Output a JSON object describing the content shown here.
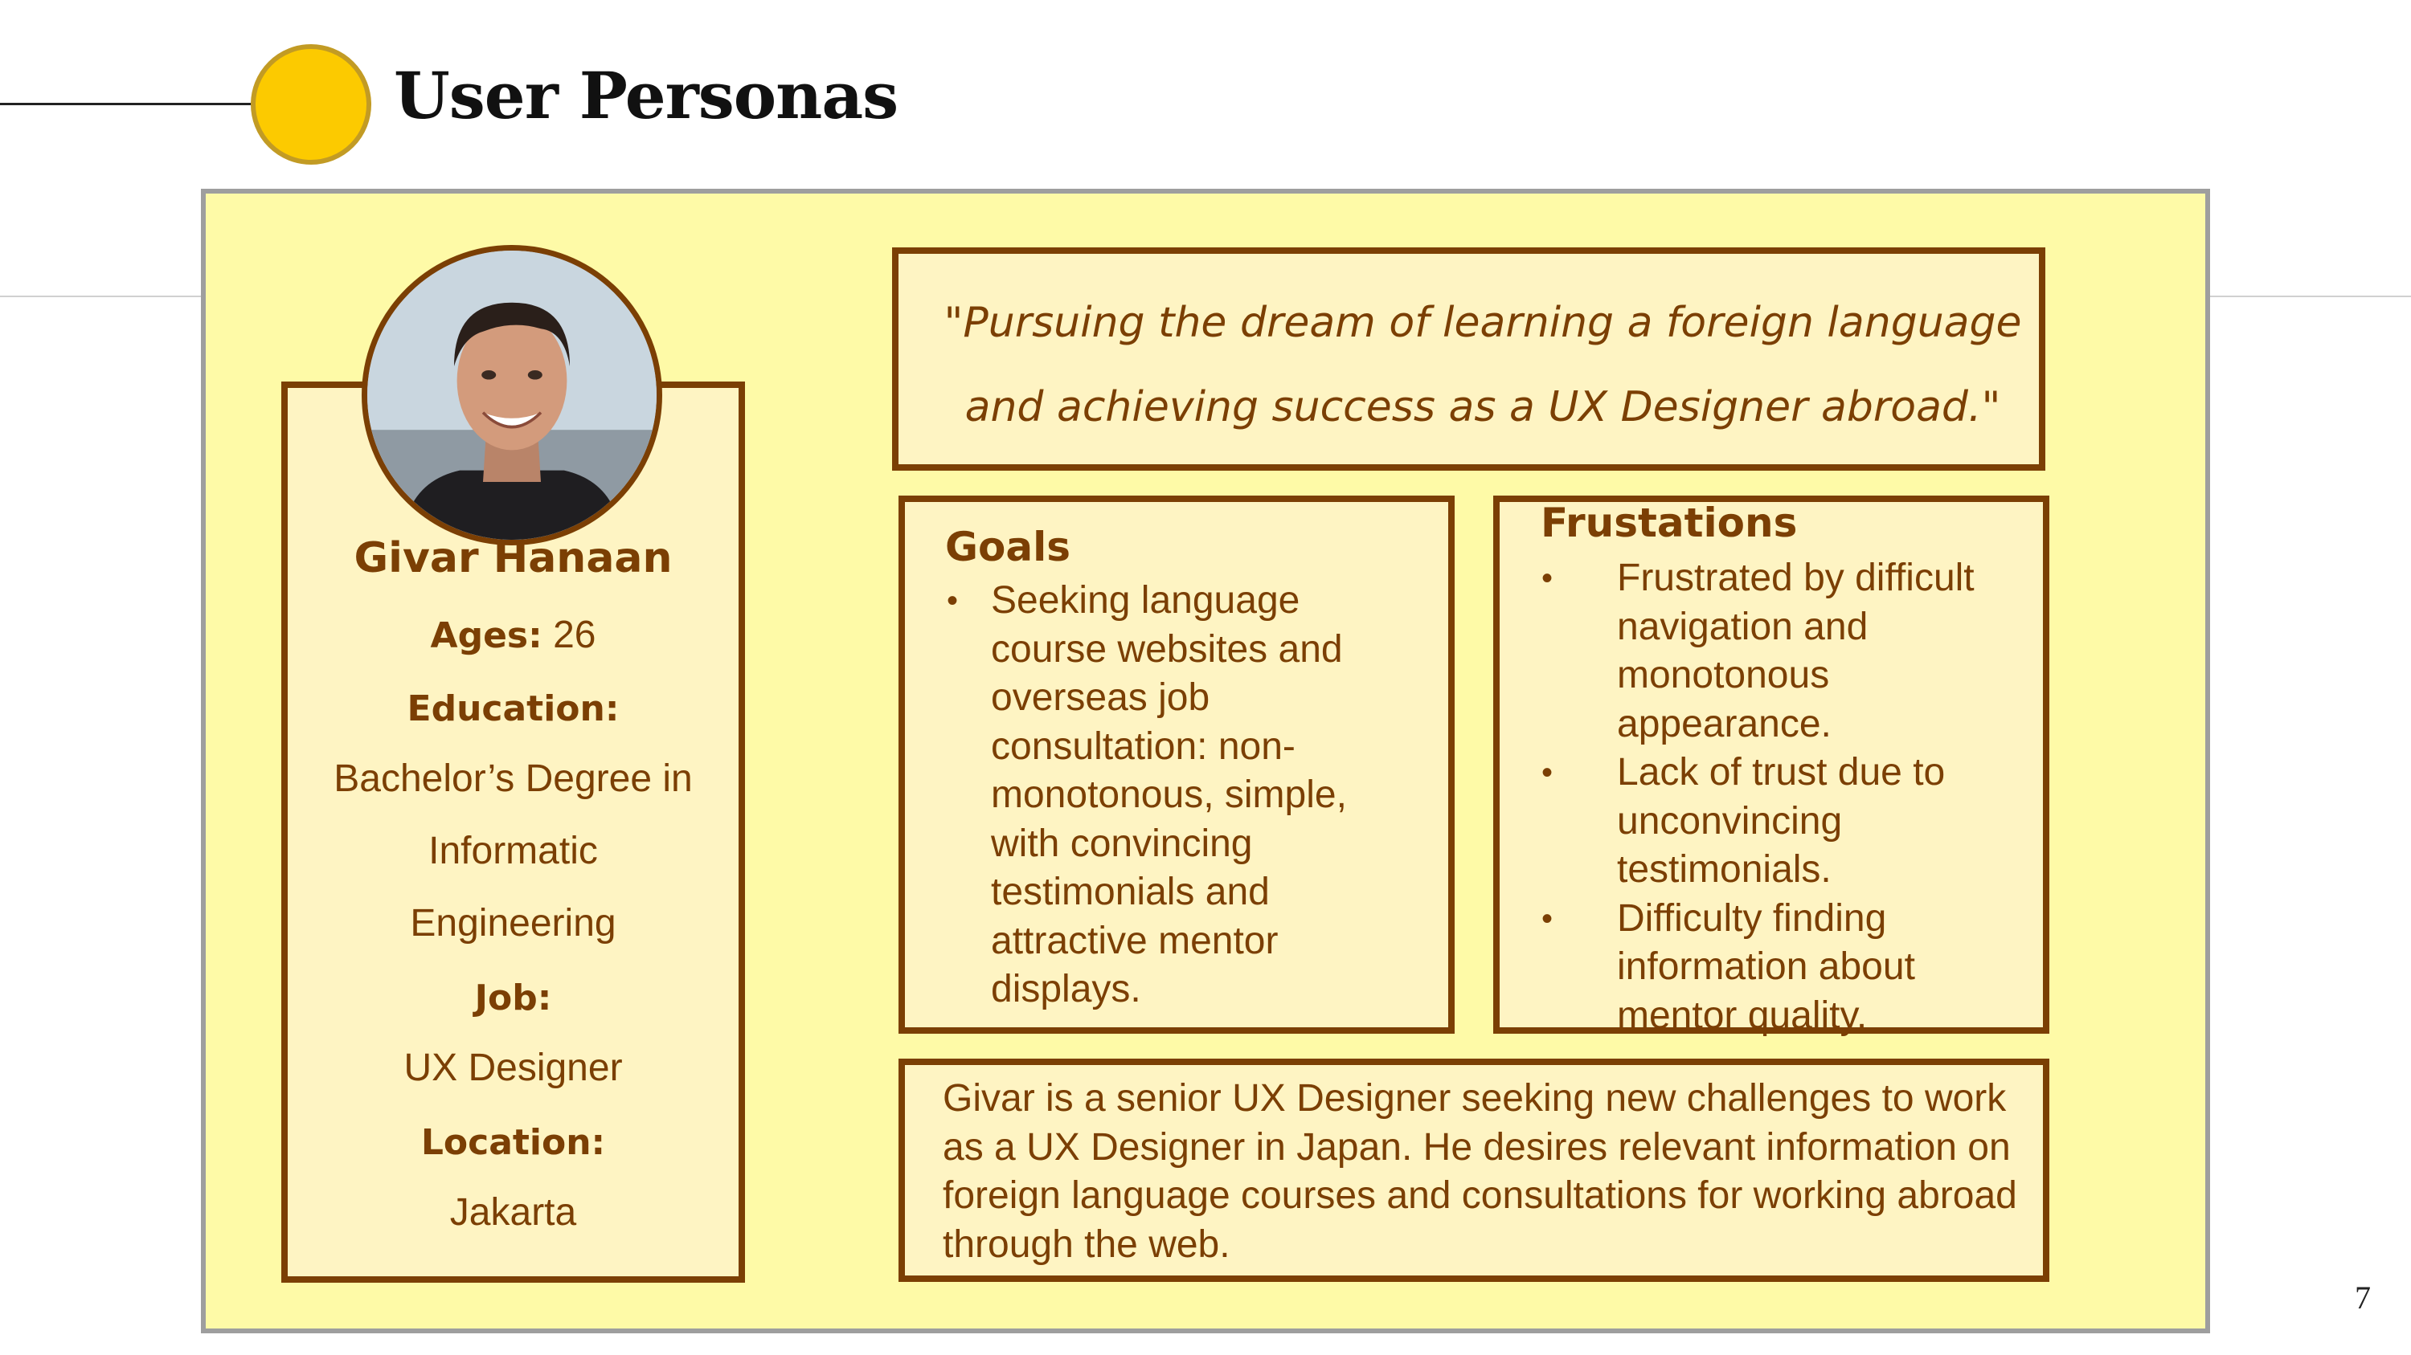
{
  "page_title": "User Personas",
  "persona": {
    "name": "Givar Hanaan",
    "ages_label": "Ages:",
    "ages_value": "26",
    "education_label": "Education:",
    "education_lines": [
      "Bachelor’s Degree in",
      "Informatic",
      "Engineering"
    ],
    "job_label": "Job:",
    "job_value": "UX Designer",
    "location_label": "Location:",
    "location_value": "Jakarta",
    "photo_icon": "user-photo-icon"
  },
  "quote": {
    "line1": "\"Pursuing the dream of learning a foreign language",
    "line2": "and achieving success as a UX Designer abroad.\""
  },
  "goals": {
    "title": "Goals",
    "items": [
      "Seeking language course websites and overseas job consultation: non-monotonous, simple, with convincing testimonials and attractive mentor displays."
    ]
  },
  "frustrations": {
    "title": "Frustations",
    "items": [
      "Frustrated by difficult navigation and monotonous appearance.",
      "Lack of trust due to unconvincing testimonials.",
      "Difficulty finding information about mentor quality."
    ]
  },
  "bio": "Givar is a senior UX Designer seeking new challenges to work as a UX Designer in Japan. He desires relevant information on foreign language courses and consultations for working abroad through the web.",
  "bullet_char": "•",
  "page_number": "7",
  "colors": {
    "accent_yellow": "#fcca00",
    "card_background": "#fefaa7",
    "panel_background": "#fef4c3",
    "brown": "#7b3f04",
    "card_border": "#9e9e9e"
  }
}
